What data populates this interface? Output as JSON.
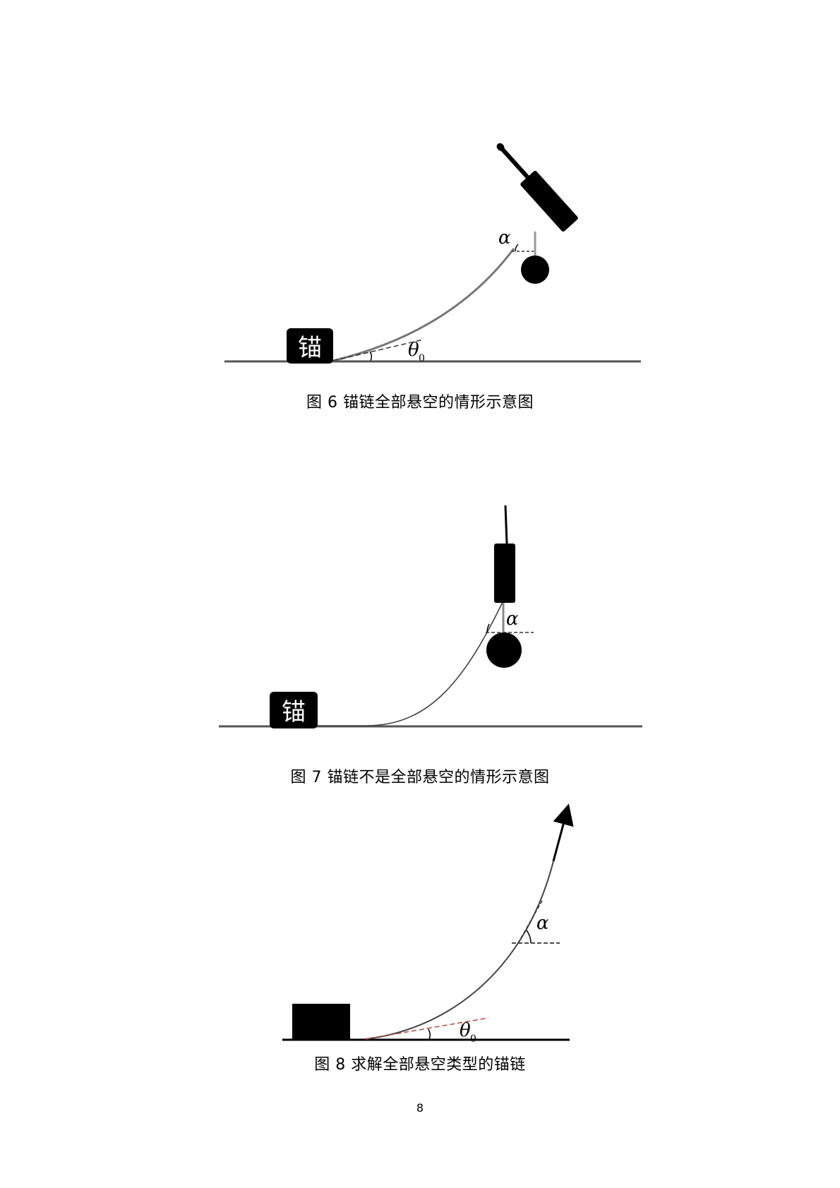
{
  "figures": [
    {
      "anchor_label": "锚",
      "alpha_label": "α",
      "theta_label": "θ",
      "theta_sub": "0",
      "caption": "图 6  锚链全部悬空的情形示意图"
    },
    {
      "anchor_label": "锚",
      "alpha_label": "α",
      "caption": "图 7  锚链不是全部悬空的情形示意图"
    },
    {
      "alpha_label": "α",
      "theta_label": "θ",
      "theta_sub": "0",
      "caption": "图 8  求解全部悬空类型的锚链"
    }
  ],
  "page_number": "8"
}
